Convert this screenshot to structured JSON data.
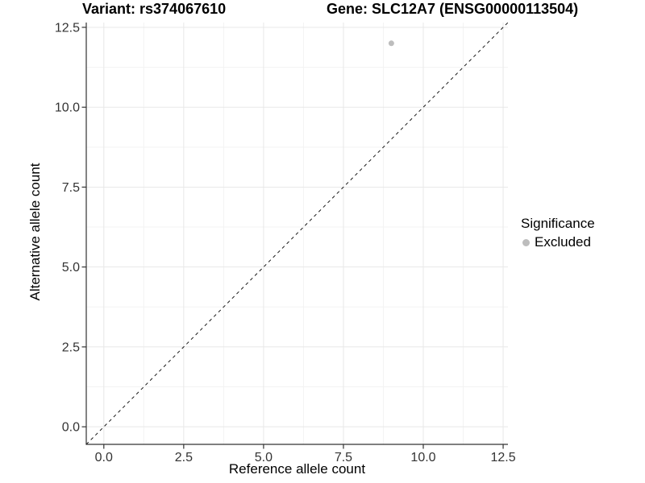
{
  "chart_data": {
    "type": "scatter",
    "titles": {
      "variant": "Variant: rs374067610",
      "gene": "Gene: SLC12A7 (ENSG00000113504)"
    },
    "xlabel": "Reference allele count",
    "ylabel": "Alternative allele count",
    "xlim": [
      -0.55,
      12.65
    ],
    "ylim": [
      -0.55,
      12.65
    ],
    "xticks": {
      "values": [
        0,
        2.5,
        5,
        7.5,
        10,
        12.5
      ],
      "labels": [
        "0.0",
        "2.5",
        "5.0",
        "7.5",
        "10.0",
        "12.5"
      ]
    },
    "yticks": {
      "values": [
        0,
        2.5,
        5,
        7.5,
        10,
        12.5
      ],
      "labels": [
        "0.0",
        "2.5",
        "5.0",
        "7.5",
        "10.0",
        "12.5"
      ]
    },
    "minor_ticks": [
      1.25,
      3.75,
      6.25,
      8.75,
      11.25
    ],
    "grid": true,
    "points": [
      {
        "x": 9,
        "y": 12,
        "series": "Excluded",
        "color": "#bdbdbd",
        "radius": 3.5
      }
    ],
    "reference_line": {
      "slope": 1,
      "intercept": 0,
      "style": "dashed",
      "color": "#1a1a1a"
    },
    "legend": {
      "title": "Significance",
      "position": "right",
      "entries": [
        {
          "label": "Excluded",
          "color": "#bdbdbd"
        }
      ]
    },
    "colors": {
      "axis_line": "#333333",
      "major_grid": "#e8e8e8",
      "minor_grid": "#f3f3f3",
      "tick_label": "#333333"
    }
  }
}
